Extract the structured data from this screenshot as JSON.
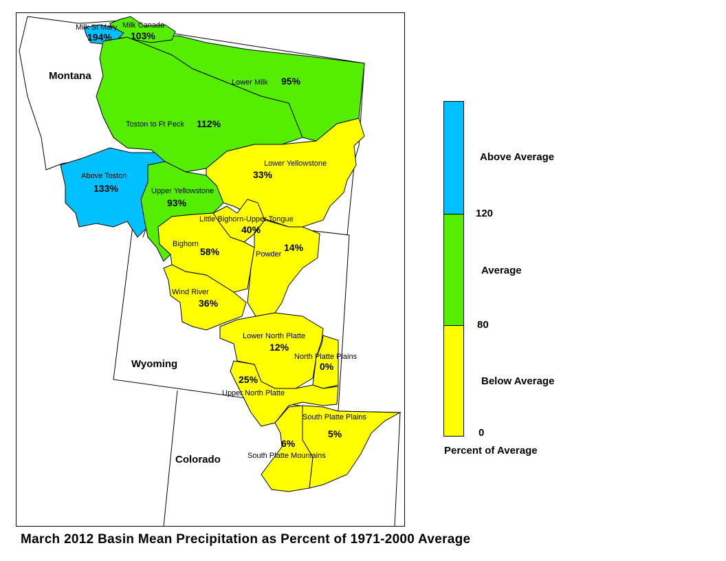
{
  "colors": {
    "above": "#00c0ff",
    "average": "#55ee00",
    "below": "#ffff00",
    "outline": "#000000",
    "background": "#ffffff"
  },
  "states": [
    "Montana",
    "Wyoming",
    "Colorado"
  ],
  "basins": [
    {
      "name": "Milk St Mary",
      "pct": "194%",
      "class": "above"
    },
    {
      "name": "Milk Canada",
      "pct": "103%",
      "class": "average"
    },
    {
      "name": "Lower Milk",
      "pct": "95%",
      "class": "average"
    },
    {
      "name": "Toston to Ft Peck",
      "pct": "112%",
      "class": "average"
    },
    {
      "name": "Above Toston",
      "pct": "133%",
      "class": "above"
    },
    {
      "name": "Upper Yellowstone",
      "pct": "93%",
      "class": "average"
    },
    {
      "name": "Lower Yellowstone",
      "pct": "33%",
      "class": "below"
    },
    {
      "name": "Little Bighorn-Upper Tongue",
      "pct": "40%",
      "class": "below"
    },
    {
      "name": "Bighorn",
      "pct": "58%",
      "class": "below"
    },
    {
      "name": "Powder",
      "pct": "14%",
      "class": "below"
    },
    {
      "name": "Wind River",
      "pct": "36%",
      "class": "below"
    },
    {
      "name": "Lower North Platte",
      "pct": "12%",
      "class": "below"
    },
    {
      "name": "North Platte Plains",
      "pct": "0%",
      "class": "below"
    },
    {
      "name": "",
      "pct": "25%",
      "class": "below"
    },
    {
      "name": "Upper North Platte",
      "pct": "",
      "class": "below"
    },
    {
      "name": "South Platte Plains",
      "pct": "5%",
      "class": "below"
    },
    {
      "name": "South Platte Mountains",
      "pct": "6%",
      "class": "below"
    }
  ],
  "legend": {
    "categories": [
      {
        "label": "Above Average",
        "color": "#00c0ff"
      },
      {
        "label": "Average",
        "color": "#55ee00"
      },
      {
        "label": "Below Average",
        "color": "#ffff00"
      }
    ],
    "ticks": [
      "120",
      "80",
      "0"
    ],
    "title": "Percent of Average"
  },
  "caption": "March 2012 Basin Mean Precipitation as Percent of 1971-2000 Average"
}
